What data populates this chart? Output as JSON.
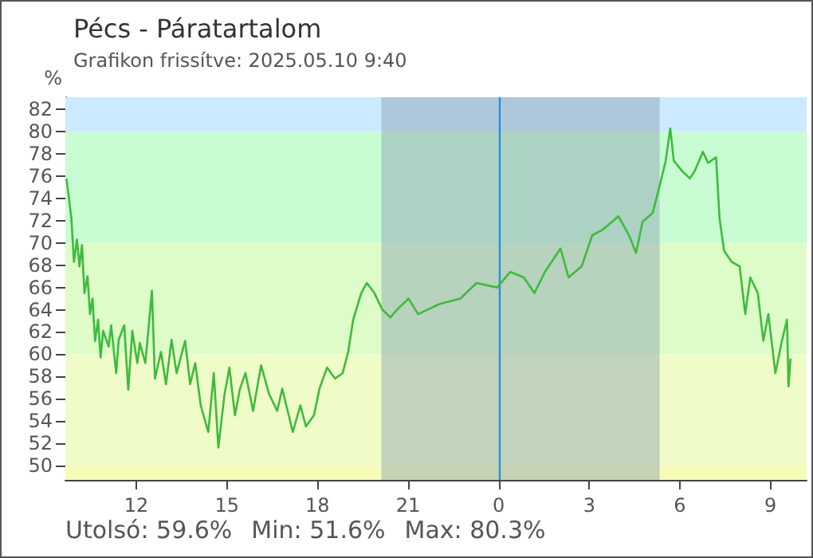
{
  "chart_data": {
    "type": "line",
    "title": "Pécs - Páratartalom",
    "subtitle": "Grafikon frissítve: 2025.05.10 9:40",
    "ylabel": "%",
    "annotations": [
      "Utolsó: 59.6%",
      "Min: 51.6%",
      "Max: 80.3%"
    ],
    "xlim": [
      "2025-05-09T09:39",
      "2025-05-10T10:12"
    ],
    "xticks": [
      {
        "value": "2025-05-09T12:00",
        "label": "12"
      },
      {
        "value": "2025-05-09T15:00",
        "label": "15"
      },
      {
        "value": "2025-05-09T18:00",
        "label": "18"
      },
      {
        "value": "2025-05-09T21:00",
        "label": "21"
      },
      {
        "value": "2025-05-10T00:00",
        "label": "0"
      },
      {
        "value": "2025-05-10T03:00",
        "label": "3"
      },
      {
        "value": "2025-05-10T06:00",
        "label": "6"
      },
      {
        "value": "2025-05-10T09:00",
        "label": "9"
      }
    ],
    "ylim": [
      48.7,
      83.1
    ],
    "yticks": [
      50,
      52,
      54,
      56,
      58,
      60,
      62,
      64,
      66,
      68,
      70,
      72,
      74,
      76,
      78,
      80,
      82
    ],
    "grid": false,
    "marker": "none",
    "line_style": "solid",
    "bands": [
      {
        "axis": "y",
        "from": 80,
        "to": 83.1,
        "color": "#cce9ff"
      },
      {
        "axis": "y",
        "from": 70,
        "to": 80,
        "color": "#c8fcd3"
      },
      {
        "axis": "y",
        "from": 60,
        "to": 70,
        "color": "#ddfcc8"
      },
      {
        "axis": "y",
        "from": 50,
        "to": 60,
        "color": "#effcc8"
      },
      {
        "axis": "y",
        "from": 48.7,
        "to": 50,
        "color": "#f6fbb8"
      },
      {
        "axis": "x",
        "from": "2025-05-09T20:07",
        "to": "2025-05-10T05:20",
        "color": "#8a9fb0"
      }
    ],
    "ref_lines": [
      {
        "axis": "x",
        "value": "2025-05-10T00:00",
        "color": "#2a90e0",
        "line_style": "solid"
      }
    ],
    "series": [
      {
        "color": "#3dbb3d",
        "x": [
          "2025-05-09T09:41",
          "2025-05-09T09:46",
          "2025-05-09T09:51",
          "2025-05-09T09:56",
          "2025-05-09T10:02",
          "2025-05-09T10:07",
          "2025-05-09T10:12",
          "2025-05-09T10:17",
          "2025-05-09T10:23",
          "2025-05-09T10:28",
          "2025-05-09T10:33",
          "2025-05-09T10:38",
          "2025-05-09T10:44",
          "2025-05-09T10:49",
          "2025-05-09T10:54",
          "2025-05-09T11:05",
          "2025-05-09T11:10",
          "2025-05-09T11:20",
          "2025-05-09T11:25",
          "2025-05-09T11:36",
          "2025-05-09T11:44",
          "2025-05-09T11:52",
          "2025-05-09T12:02",
          "2025-05-09T12:07",
          "2025-05-09T12:18",
          "2025-05-09T12:31",
          "2025-05-09T12:37",
          "2025-05-09T12:49",
          "2025-05-09T12:59",
          "2025-05-09T13:10",
          "2025-05-09T13:20",
          "2025-05-09T13:37",
          "2025-05-09T13:47",
          "2025-05-09T13:57",
          "2025-05-09T14:08",
          "2025-05-09T14:23",
          "2025-05-09T14:34",
          "2025-05-09T14:43",
          "2025-05-09T14:55",
          "2025-05-09T15:05",
          "2025-05-09T15:16",
          "2025-05-09T15:26",
          "2025-05-09T15:37",
          "2025-05-09T15:52",
          "2025-05-09T16:08",
          "2025-05-09T16:24",
          "2025-05-09T16:40",
          "2025-05-09T16:50",
          "2025-05-09T17:11",
          "2025-05-09T17:26",
          "2025-05-09T17:37",
          "2025-05-09T17:53",
          "2025-05-09T18:04",
          "2025-05-09T18:19",
          "2025-05-09T18:35",
          "2025-05-09T18:50",
          "2025-05-09T19:01",
          "2025-05-09T19:11",
          "2025-05-09T19:27",
          "2025-05-09T19:38",
          "2025-05-09T19:53",
          "2025-05-09T20:09",
          "2025-05-09T20:25",
          "2025-05-09T20:38",
          "2025-05-09T21:01",
          "2025-05-09T21:20",
          "2025-05-09T22:02",
          "2025-05-09T22:44",
          "2025-05-09T23:16",
          "2025-05-09T23:57",
          "2025-05-10T00:23",
          "2025-05-10T00:50",
          "2025-05-10T01:11",
          "2025-05-10T01:32",
          "2025-05-10T02:03",
          "2025-05-10T02:19",
          "2025-05-10T02:45",
          "2025-05-10T03:06",
          "2025-05-10T03:27",
          "2025-05-10T03:58",
          "2025-05-10T04:19",
          "2025-05-10T04:33",
          "2025-05-10T04:46",
          "2025-05-10T05:06",
          "2025-05-10T05:22",
          "2025-05-10T05:32",
          "2025-05-10T05:41",
          "2025-05-10T05:48",
          "2025-05-10T06:04",
          "2025-05-10T06:20",
          "2025-05-10T06:30",
          "2025-05-10T06:46",
          "2025-05-10T06:56",
          "2025-05-10T07:12",
          "2025-05-10T07:19",
          "2025-05-10T07:28",
          "2025-05-10T07:43",
          "2025-05-10T07:59",
          "2025-05-10T08:10",
          "2025-05-10T08:20",
          "2025-05-10T08:35",
          "2025-05-10T08:46",
          "2025-05-10T08:56",
          "2025-05-10T09:10",
          "2025-05-10T09:23",
          "2025-05-10T09:33",
          "2025-05-10T09:36",
          "2025-05-10T09:40"
        ],
        "values": [
          75.8,
          74.1,
          72.2,
          68.3,
          70.3,
          67.9,
          69.8,
          65.5,
          67,
          63.6,
          65,
          61.2,
          63.1,
          59.7,
          62.1,
          60.7,
          62.6,
          58.3,
          61.3,
          62.6,
          56.8,
          62.1,
          59.2,
          61,
          59.2,
          65.7,
          57.8,
          60.2,
          57.3,
          61.3,
          58.3,
          61.2,
          57.3,
          59.2,
          55.4,
          53,
          58.3,
          51.6,
          56.3,
          58.8,
          54.5,
          56.9,
          58.3,
          54.9,
          59,
          56.4,
          54.9,
          56.9,
          53,
          55.4,
          53.5,
          54.5,
          56.9,
          58.8,
          57.8,
          58.3,
          60.2,
          63.1,
          65.5,
          66.4,
          65.5,
          64,
          63.3,
          64,
          65,
          63.6,
          64.5,
          65,
          66.4,
          66,
          67.4,
          66.9,
          65.5,
          67.4,
          69.5,
          66.9,
          67.9,
          70.7,
          71.2,
          72.4,
          70.7,
          69.1,
          71.9,
          72.7,
          75.5,
          77.4,
          80.3,
          77.4,
          76.5,
          75.8,
          76.5,
          78.2,
          77.2,
          77.7,
          72.2,
          69.3,
          68.3,
          67.9,
          63.6,
          66.9,
          65.5,
          61.2,
          63.6,
          58.3,
          61.2,
          63.1,
          57.1,
          59.6
        ]
      }
    ]
  }
}
